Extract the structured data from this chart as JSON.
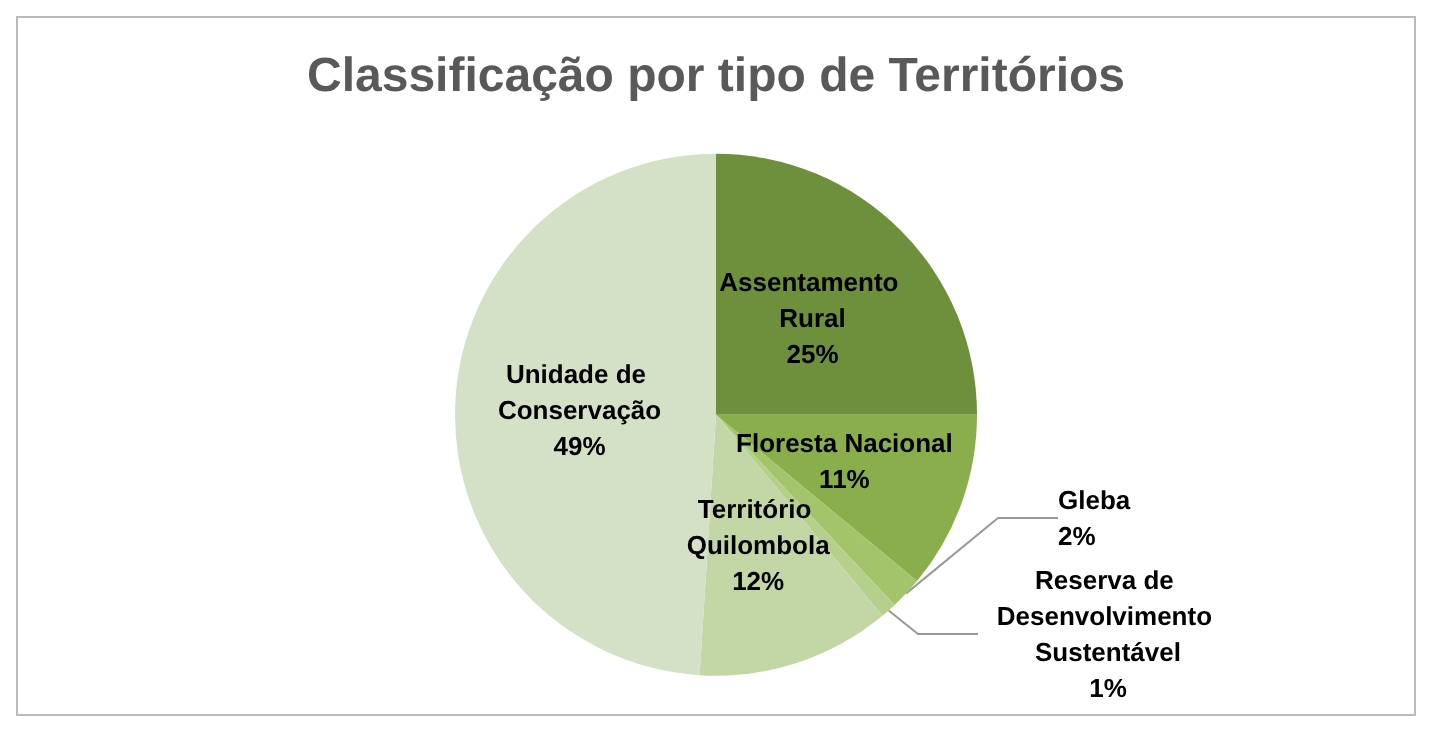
{
  "chart_data": {
    "type": "pie",
    "title": "Classificação por tipo de Territórios",
    "categories": [
      "Assentamento Rural",
      "Floresta Nacional",
      "Gleba",
      "Reserva de Desenvolvimento Sustentável",
      "Território Quilombola",
      "Unidade de Conservação"
    ],
    "values": [
      25,
      11,
      2,
      1,
      12,
      49
    ],
    "colors": [
      "#6e8f3c",
      "#8bae4c",
      "#a3c46a",
      "#b5d08a",
      "#c3d6a6",
      "#d5e1c6"
    ],
    "value_labels": [
      "25%",
      "11%",
      "2%",
      "1%",
      "12%",
      "49%"
    ],
    "legend": false
  }
}
